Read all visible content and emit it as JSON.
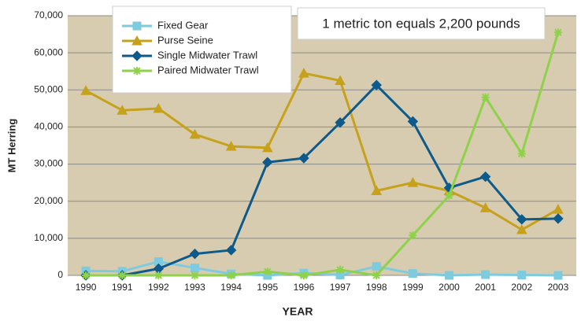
{
  "chart_data": {
    "type": "line",
    "annotation": "1 metric ton equals 2,200 pounds",
    "y_label": "MT Herring",
    "x_label": "YEAR",
    "categories": [
      "1990",
      "1991",
      "1992",
      "1993",
      "1994",
      "1995",
      "1996",
      "1997",
      "1998",
      "1999",
      "2000",
      "2001",
      "2002",
      "2003"
    ],
    "series": [
      {
        "name": "Fixed Gear",
        "color": "#7ecbdf",
        "marker": "square",
        "values": [
          1200,
          1100,
          3700,
          2000,
          400,
          0,
          600,
          100,
          2400,
          500,
          0,
          200,
          100,
          0
        ]
      },
      {
        "name": "Purse Seine",
        "color": "#c6a11b",
        "marker": "triangle",
        "values": [
          49800,
          44500,
          45000,
          38000,
          34800,
          34400,
          54500,
          52500,
          22800,
          25000,
          22800,
          18200,
          12300,
          17800
        ]
      },
      {
        "name": "Single Midwater Trawl",
        "color": "#0e5a8a",
        "marker": "diamond",
        "values": [
          0,
          0,
          1800,
          5800,
          6800,
          30500,
          31600,
          41200,
          51300,
          41500,
          23600,
          26600,
          15100,
          15300
        ]
      },
      {
        "name": "Paired Midwater Trawl",
        "color": "#8fd14b",
        "marker": "asterisk",
        "values": [
          0,
          0,
          0,
          0,
          0,
          1000,
          0,
          1500,
          0,
          10800,
          21500,
          48000,
          32800,
          65500
        ]
      }
    ],
    "ylim": [
      0,
      70000
    ],
    "yticks": [
      0,
      {
        "value": 10000,
        "label": "10,000"
      },
      {
        "value": 20000,
        "label": "20,000"
      },
      {
        "value": 30000,
        "label": "30,000"
      },
      {
        "value": 40000,
        "label": "40,000"
      },
      {
        "value": 50000,
        "label": "50,000"
      },
      {
        "value": 60000,
        "label": "60,000"
      },
      {
        "value": 70000,
        "label": "70,000"
      }
    ],
    "grid": true,
    "legend": "upper left"
  }
}
